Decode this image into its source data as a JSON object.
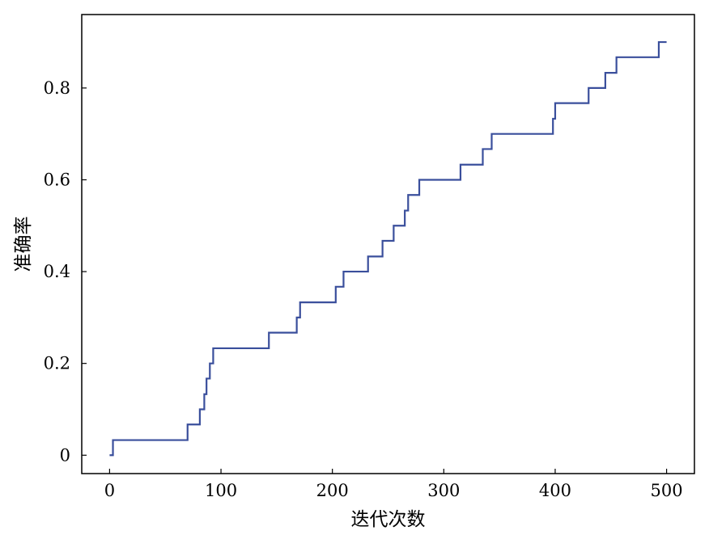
{
  "chart_data": {
    "type": "line",
    "title": "",
    "xlabel": "迭代次数",
    "ylabel": "准确率",
    "xlim": [
      -25,
      525
    ],
    "ylim": [
      -0.04,
      0.96
    ],
    "xticks": [
      0,
      100,
      200,
      300,
      400,
      500
    ],
    "xtick_labels": [
      "0",
      "100",
      "200",
      "300",
      "400",
      "500"
    ],
    "yticks": [
      0,
      0.2,
      0.4,
      0.6,
      0.8
    ],
    "ytick_labels": [
      "0",
      "0.2",
      "0.4",
      "0.6",
      "0.8"
    ],
    "grid": false,
    "legend": false,
    "series": [
      {
        "color": "#3a4f9c",
        "step": "post",
        "x": [
          0,
          3,
          70,
          81,
          85,
          87,
          90,
          93,
          143,
          168,
          171,
          203,
          207,
          210,
          232,
          245,
          250,
          255,
          265,
          268,
          278,
          315,
          335,
          343,
          398,
          400,
          430,
          445,
          455,
          493,
          500
        ],
        "y": [
          0,
          0.033,
          0.067,
          0.1,
          0.133,
          0.167,
          0.2,
          0.233,
          0.267,
          0.3,
          0.333,
          0.367,
          0.367,
          0.4,
          0.433,
          0.467,
          0.467,
          0.5,
          0.533,
          0.567,
          0.6,
          0.633,
          0.667,
          0.7,
          0.733,
          0.767,
          0.8,
          0.833,
          0.867,
          0.9,
          0.9
        ]
      }
    ]
  }
}
